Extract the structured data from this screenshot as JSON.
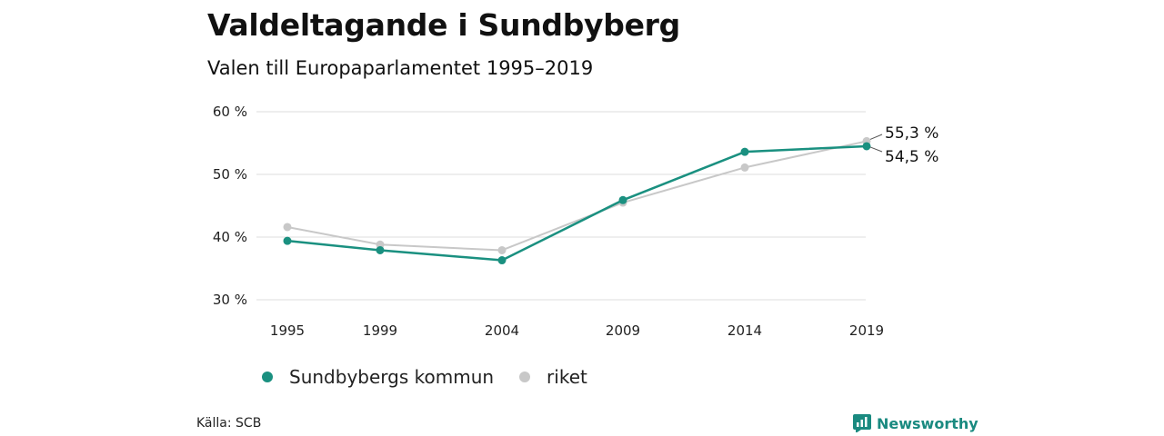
{
  "chart_data": {
    "type": "line",
    "title": "Valdeltagande i Sundbyberg",
    "subtitle": "Valen till Europaparlamentet 1995–2019",
    "x": [
      "1995",
      "1999",
      "2004",
      "2009",
      "2014",
      "2019"
    ],
    "y_ticks": [
      "30 %",
      "40 %",
      "50 %",
      "60 %"
    ],
    "ylim": [
      30,
      60
    ],
    "grid": true,
    "legend_position": "bottom-left",
    "series": [
      {
        "name": "Sundbybergs kommun",
        "color": "#1a9080",
        "values": [
          39.4,
          37.9,
          36.3,
          45.9,
          53.6,
          54.5
        ],
        "end_label": "54,5 %"
      },
      {
        "name": "riket",
        "color": "#c8c8c8",
        "values": [
          41.6,
          38.8,
          37.9,
          45.5,
          51.1,
          55.3
        ],
        "end_label": "55,3 %"
      }
    ]
  },
  "footer": {
    "source": "Källa: SCB",
    "brand": "Newsworthy",
    "brand_icon": "newsworthy-logo-icon"
  }
}
